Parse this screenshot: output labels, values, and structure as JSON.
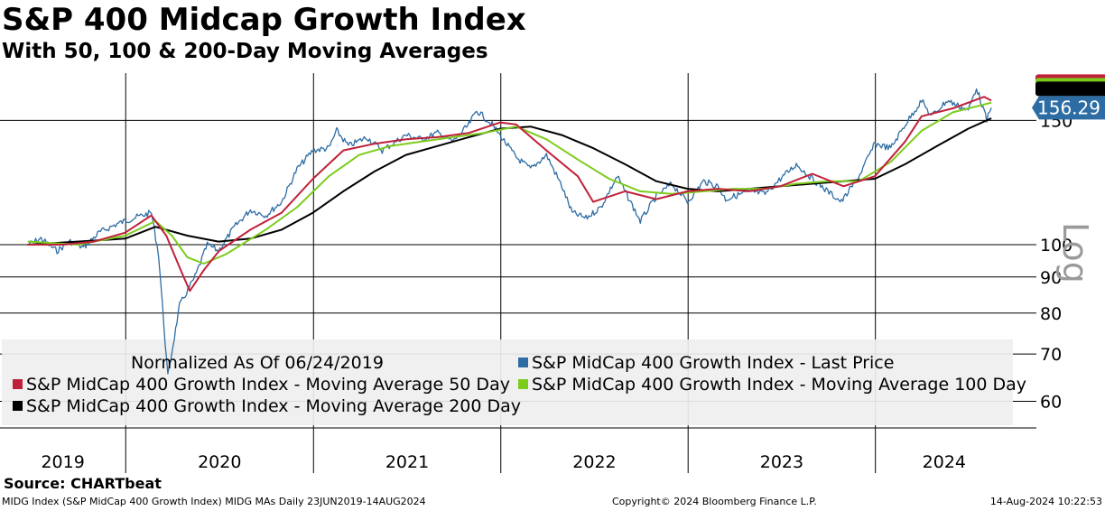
{
  "header": {
    "title": "S&P 400 Midcap Growth Index",
    "subtitle": "With 50, 100 & 200-Day Moving Averages"
  },
  "source": "Source: CHARTbeat",
  "footer": {
    "left": "MIDG Index (S&P MidCap 400 Growth Index) MIDG MAs  Daily 23JUN2019-14AUG2024",
    "center": "Copyright© 2024 Bloomberg Finance L.P.",
    "right": "14-Aug-2024 10:22:53"
  },
  "colors": {
    "last_price": "#2e6da4",
    "ma50": "#c0213a",
    "ma100": "#7ccc1c",
    "ma200": "#000000",
    "price_tag": "#2e6da4",
    "legend_bg": "#efefef"
  },
  "chart_data": {
    "type": "line",
    "scale": "log",
    "y_axis_label": "Log",
    "ylim": [
      55,
      175
    ],
    "y_ticks": [
      60,
      70,
      80,
      90,
      100,
      150
    ],
    "x_labels": [
      "2019",
      "2020",
      "2021",
      "2022",
      "2023",
      "2024"
    ],
    "legend_note": "Normalized As Of 06/24/2019",
    "last_value_label": "156.29",
    "grid": true,
    "legend_position": "bottom",
    "series": [
      {
        "name": "S&P MidCap 400 Growth Index - Last Price",
        "color_key": "last_price",
        "points": [
          [
            "2019-06-24",
            100
          ],
          [
            "2019-07-20",
            102
          ],
          [
            "2019-08-20",
            98
          ],
          [
            "2019-09-15",
            101
          ],
          [
            "2019-10-10",
            99
          ],
          [
            "2019-11-10",
            104
          ],
          [
            "2019-12-15",
            107
          ],
          [
            "2020-01-15",
            109
          ],
          [
            "2020-02-20",
            111
          ],
          [
            "2020-03-05",
            97
          ],
          [
            "2020-03-23",
            65
          ],
          [
            "2020-04-15",
            82
          ],
          [
            "2020-05-15",
            90
          ],
          [
            "2020-06-08",
            100
          ],
          [
            "2020-06-30",
            98
          ],
          [
            "2020-07-31",
            106
          ],
          [
            "2020-08-31",
            112
          ],
          [
            "2020-09-30",
            110
          ],
          [
            "2020-10-31",
            115
          ],
          [
            "2020-11-30",
            128
          ],
          [
            "2020-12-31",
            136
          ],
          [
            "2021-01-31",
            137
          ],
          [
            "2021-02-15",
            145
          ],
          [
            "2021-03-10",
            138
          ],
          [
            "2021-04-15",
            142
          ],
          [
            "2021-05-15",
            136
          ],
          [
            "2021-06-30",
            143
          ],
          [
            "2021-07-31",
            141
          ],
          [
            "2021-08-31",
            144
          ],
          [
            "2021-09-30",
            140
          ],
          [
            "2021-10-31",
            148
          ],
          [
            "2021-11-15",
            155
          ],
          [
            "2021-12-15",
            148
          ],
          [
            "2022-01-31",
            133
          ],
          [
            "2022-02-28",
            128
          ],
          [
            "2022-03-31",
            134
          ],
          [
            "2022-04-30",
            121
          ],
          [
            "2022-05-20",
            111
          ],
          [
            "2022-06-16",
            109
          ],
          [
            "2022-07-15",
            113
          ],
          [
            "2022-08-16",
            125
          ],
          [
            "2022-09-30",
            108
          ],
          [
            "2022-10-31",
            117
          ],
          [
            "2022-11-30",
            122
          ],
          [
            "2022-12-31",
            115
          ],
          [
            "2023-01-31",
            123
          ],
          [
            "2023-02-28",
            121
          ],
          [
            "2023-03-15",
            116
          ],
          [
            "2023-04-30",
            119
          ],
          [
            "2023-05-31",
            118
          ],
          [
            "2023-06-30",
            124
          ],
          [
            "2023-07-31",
            130
          ],
          [
            "2023-08-31",
            124
          ],
          [
            "2023-09-30",
            119
          ],
          [
            "2023-10-27",
            115
          ],
          [
            "2023-11-30",
            125
          ],
          [
            "2023-12-31",
            139
          ],
          [
            "2024-01-31",
            137
          ],
          [
            "2024-02-28",
            148
          ],
          [
            "2024-03-31",
            160
          ],
          [
            "2024-04-19",
            152
          ],
          [
            "2024-05-20",
            160
          ],
          [
            "2024-06-30",
            155
          ],
          [
            "2024-07-16",
            167
          ],
          [
            "2024-08-05",
            150
          ],
          [
            "2024-08-14",
            156.29
          ]
        ]
      },
      {
        "name": "S&P MidCap 400 Growth Index - Moving Average 50 Day",
        "color_key": "ma50",
        "points": [
          [
            "2019-06-24",
            100
          ],
          [
            "2019-08-31",
            100
          ],
          [
            "2019-10-31",
            101
          ],
          [
            "2019-12-31",
            104
          ],
          [
            "2020-02-20",
            110
          ],
          [
            "2020-03-20",
            103
          ],
          [
            "2020-04-20",
            91
          ],
          [
            "2020-05-05",
            86
          ],
          [
            "2020-06-01",
            92
          ],
          [
            "2020-07-01",
            98
          ],
          [
            "2020-08-31",
            105
          ],
          [
            "2020-10-31",
            111
          ],
          [
            "2020-12-31",
            124
          ],
          [
            "2021-02-28",
            136
          ],
          [
            "2021-04-30",
            139
          ],
          [
            "2021-06-30",
            141
          ],
          [
            "2021-08-31",
            142
          ],
          [
            "2021-10-31",
            144
          ],
          [
            "2021-12-31",
            149
          ],
          [
            "2022-01-31",
            148
          ],
          [
            "2022-03-31",
            136
          ],
          [
            "2022-05-31",
            125
          ],
          [
            "2022-06-30",
            115
          ],
          [
            "2022-08-31",
            119
          ],
          [
            "2022-10-31",
            116
          ],
          [
            "2022-12-31",
            119
          ],
          [
            "2023-02-28",
            120
          ],
          [
            "2023-04-30",
            119
          ],
          [
            "2023-06-30",
            121
          ],
          [
            "2023-08-31",
            126
          ],
          [
            "2023-10-31",
            121
          ],
          [
            "2023-12-31",
            125
          ],
          [
            "2024-02-28",
            140
          ],
          [
            "2024-03-31",
            152
          ],
          [
            "2024-05-31",
            156
          ],
          [
            "2024-07-31",
            162
          ],
          [
            "2024-08-14",
            160
          ]
        ]
      },
      {
        "name": "S&P MidCap 400 Growth Index - Moving Average 100 Day",
        "color_key": "ma100",
        "points": [
          [
            "2019-06-24",
            101
          ],
          [
            "2019-09-30",
            100
          ],
          [
            "2019-12-31",
            103
          ],
          [
            "2020-02-28",
            108
          ],
          [
            "2020-03-31",
            103
          ],
          [
            "2020-04-30",
            96
          ],
          [
            "2020-06-01",
            94
          ],
          [
            "2020-07-15",
            97
          ],
          [
            "2020-09-30",
            105
          ],
          [
            "2020-11-30",
            113
          ],
          [
            "2021-01-31",
            125
          ],
          [
            "2021-03-31",
            134
          ],
          [
            "2021-05-31",
            138
          ],
          [
            "2021-07-31",
            140
          ],
          [
            "2021-09-30",
            142
          ],
          [
            "2021-11-30",
            144
          ],
          [
            "2022-01-31",
            147
          ],
          [
            "2022-03-31",
            141
          ],
          [
            "2022-05-31",
            132
          ],
          [
            "2022-07-31",
            124
          ],
          [
            "2022-09-30",
            119
          ],
          [
            "2022-11-30",
            118
          ],
          [
            "2023-01-31",
            119
          ],
          [
            "2023-03-31",
            120
          ],
          [
            "2023-05-31",
            120
          ],
          [
            "2023-07-31",
            122
          ],
          [
            "2023-09-30",
            123
          ],
          [
            "2023-11-30",
            123
          ],
          [
            "2024-01-31",
            131
          ],
          [
            "2024-03-31",
            145
          ],
          [
            "2024-05-31",
            154
          ],
          [
            "2024-07-31",
            158
          ],
          [
            "2024-08-14",
            159
          ]
        ]
      },
      {
        "name": "S&P MidCap 400 Growth Index - Moving Average 200 Day",
        "color_key": "ma200",
        "points": [
          [
            "2019-06-24",
            100
          ],
          [
            "2019-12-31",
            102
          ],
          [
            "2020-02-28",
            106
          ],
          [
            "2020-04-30",
            103
          ],
          [
            "2020-06-30",
            101
          ],
          [
            "2020-08-31",
            102
          ],
          [
            "2020-10-31",
            105
          ],
          [
            "2020-12-31",
            111
          ],
          [
            "2021-02-28",
            119
          ],
          [
            "2021-04-30",
            127
          ],
          [
            "2021-06-30",
            134
          ],
          [
            "2021-08-31",
            138
          ],
          [
            "2021-10-31",
            142
          ],
          [
            "2021-12-31",
            146
          ],
          [
            "2022-02-28",
            147
          ],
          [
            "2022-04-30",
            143
          ],
          [
            "2022-06-30",
            137
          ],
          [
            "2022-08-31",
            130
          ],
          [
            "2022-10-31",
            123
          ],
          [
            "2022-12-31",
            120
          ],
          [
            "2023-02-28",
            119
          ],
          [
            "2023-04-30",
            120
          ],
          [
            "2023-06-30",
            121
          ],
          [
            "2023-08-31",
            122
          ],
          [
            "2023-10-31",
            123
          ],
          [
            "2023-12-31",
            124
          ],
          [
            "2024-02-28",
            130
          ],
          [
            "2024-04-30",
            138
          ],
          [
            "2024-06-30",
            146
          ],
          [
            "2024-08-14",
            151
          ]
        ]
      }
    ]
  }
}
